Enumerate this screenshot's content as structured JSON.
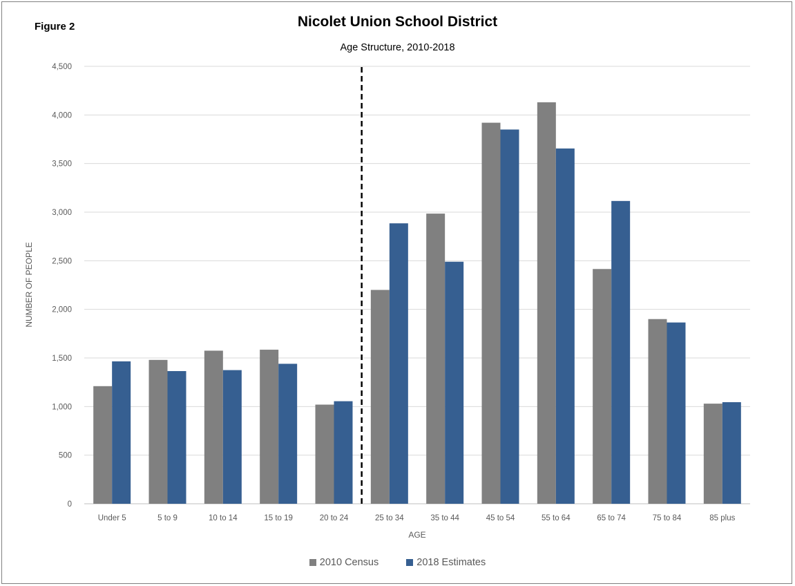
{
  "figure_label": "Figure 2",
  "colors": {
    "census": "#808080",
    "estimates": "#365f91",
    "grid": "#d9d9d9",
    "axis": "#bfbfbf"
  },
  "chart_data": {
    "type": "bar",
    "title": "Nicolet Union School District",
    "subtitle": "Age Structure,  2010-2018",
    "xlabel": "AGE",
    "ylabel": "NUMBER  OF PEOPLE",
    "ylim": [
      0,
      4500
    ],
    "yticks": [
      0,
      500,
      1000,
      1500,
      2000,
      2500,
      3000,
      3500,
      4000,
      4500
    ],
    "ytick_labels": [
      "0",
      "500",
      "1,000",
      "1,500",
      "2,000",
      "2,500",
      "3,000",
      "3,500",
      "4,000",
      "4,500"
    ],
    "categories": [
      "Under 5",
      "5 to 9",
      "10 to 14",
      "15 to 19",
      "20 to 24",
      "25 to 34",
      "35 to 44",
      "45 to 54",
      "55 to 64",
      "65 to 74",
      "75 to 84",
      "85 plus"
    ],
    "series": [
      {
        "name": "2010 Census",
        "values": [
          1210,
          1480,
          1575,
          1585,
          1020,
          2200,
          2985,
          3920,
          4130,
          2415,
          1900,
          1030
        ]
      },
      {
        "name": "2018 Estimates",
        "values": [
          1465,
          1365,
          1375,
          1440,
          1055,
          2885,
          2490,
          3850,
          3655,
          3115,
          1865,
          1045
        ]
      }
    ],
    "grid": true,
    "legend": "bottom",
    "reference_line": {
      "type": "dashed-vertical",
      "between": [
        "20 to 24",
        "25 to 34"
      ]
    }
  }
}
